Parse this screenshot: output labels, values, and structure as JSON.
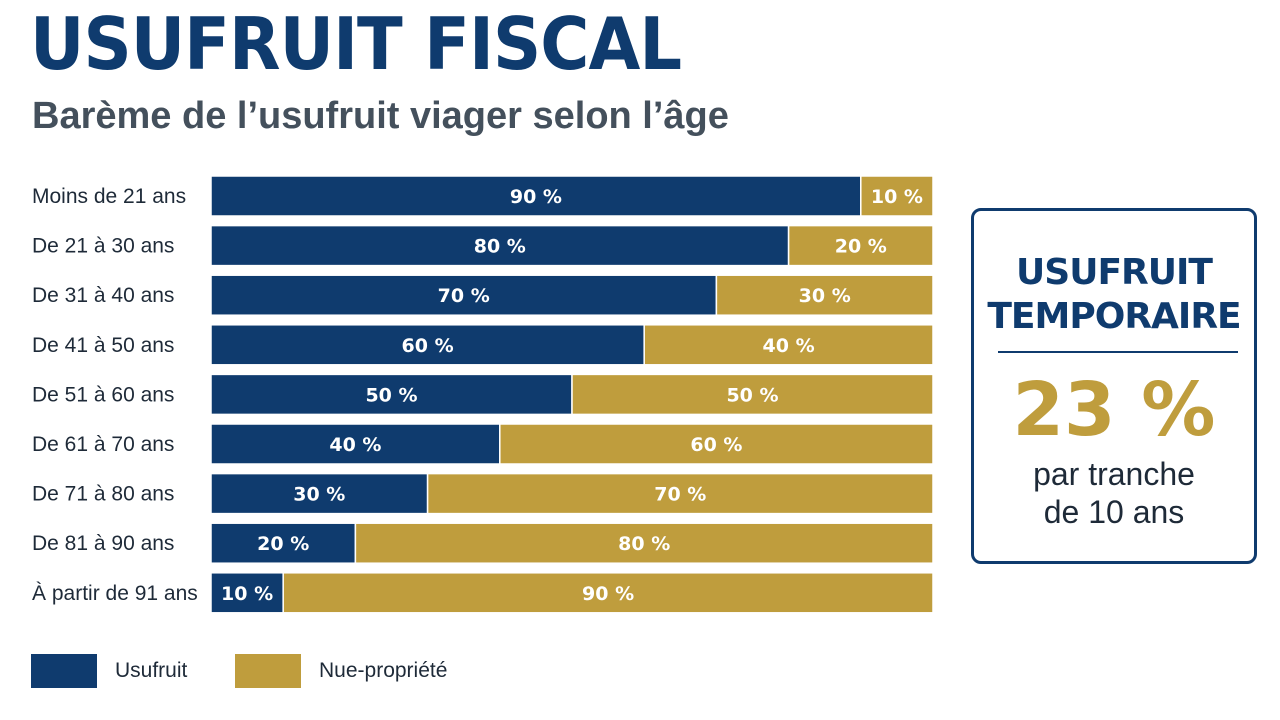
{
  "colors": {
    "usufruit": "#0f3b6e",
    "nue_propriete": "#bf9d3d",
    "title": "#0f3b6e",
    "subtitle": "#44505c",
    "text": "#1e2a38",
    "box_border": "#0f3b6e"
  },
  "header": {
    "title": "USUFRUIT FISCAL",
    "subtitle": "Barème de l’usufruit viager selon l’âge"
  },
  "chart_data": {
    "type": "bar",
    "orientation": "horizontal",
    "stacked": true,
    "categories": [
      "Moins de 21 ans",
      "De 21 à 30 ans",
      "De 31 à 40 ans",
      "De 41 à 50 ans",
      "De 51 à 60 ans",
      "De 61 à 70 ans",
      "De 71 à 80 ans",
      "De 81 à 90 ans",
      "À partir de 91 ans"
    ],
    "series": [
      {
        "name": "Usufruit",
        "values": [
          90,
          80,
          70,
          60,
          50,
          40,
          30,
          20,
          10
        ],
        "labels": [
          "90 %",
          "80 %",
          "70 %",
          "60 %",
          "50 %",
          "40 %",
          "30 %",
          "20 %",
          "10 %"
        ]
      },
      {
        "name": "Nue-propriété",
        "values": [
          10,
          20,
          30,
          40,
          50,
          60,
          70,
          80,
          90
        ],
        "labels": [
          "10 %",
          "20 %",
          "30 %",
          "40 %",
          "50 %",
          "60 %",
          "70 %",
          "80 %",
          "90 %"
        ]
      }
    ],
    "xlim": [
      0,
      100
    ],
    "grid": false,
    "legend_position": "bottom-left"
  },
  "legend": {
    "items": [
      {
        "label": "Usufruit"
      },
      {
        "label": "Nue-propriété"
      }
    ]
  },
  "info_box": {
    "heading_line1": "USUFRUIT",
    "heading_line2": "TEMPORAIRE",
    "value": "23 %",
    "caption_line1": "par tranche",
    "caption_line2": "de 10 ans"
  }
}
